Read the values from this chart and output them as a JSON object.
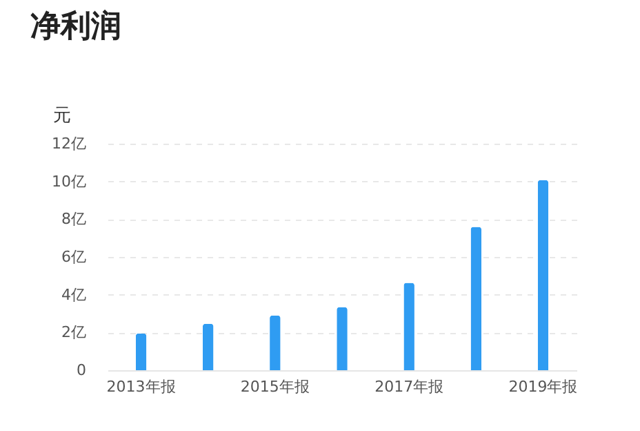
{
  "chart_data": {
    "type": "bar",
    "title": "净利润",
    "ylabel": "元",
    "categories": [
      "2013年报",
      null,
      "2015年报",
      null,
      "2017年报",
      null,
      "2019年报"
    ],
    "values": [
      1.95,
      2.46,
      2.9,
      3.34,
      4.63,
      7.59,
      10.07
    ],
    "color": "#2f9cf2",
    "ylim": [
      0,
      12
    ],
    "yticks": [
      0,
      {
        "value": 2,
        "label": "2亿"
      },
      {
        "value": 4,
        "label": "4亿"
      },
      {
        "value": 6,
        "label": "6亿"
      },
      {
        "value": 8,
        "label": "8亿"
      },
      {
        "value": 10,
        "label": "10亿"
      },
      {
        "value": 12,
        "label": "12亿"
      }
    ],
    "grid": "y"
  }
}
